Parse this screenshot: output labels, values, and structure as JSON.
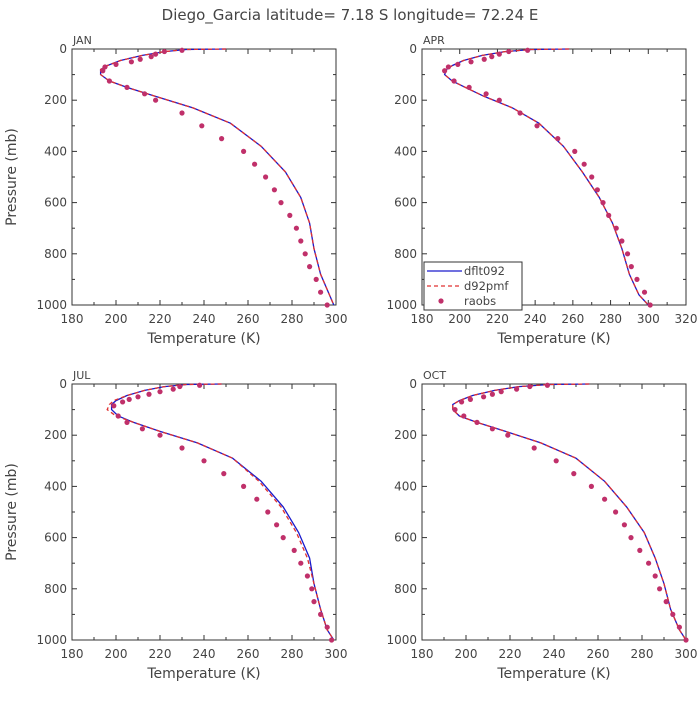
{
  "title": "Diego_Garcia  latitude= 7.18 S longitude= 72.24 E",
  "legend": {
    "items": [
      {
        "label": "dflt092",
        "color": "#1a1acc",
        "style": "solid"
      },
      {
        "label": "d92pmf",
        "color": "#e03030",
        "style": "dashed"
      },
      {
        "label": "raobs",
        "color": "#c0306a",
        "style": "marker"
      }
    ]
  },
  "chart_data": [
    {
      "type": "line",
      "panel_label": "JAN",
      "xlabel": "Temperature (K)",
      "ylabel": "Pressure (mb)",
      "xlim": [
        180,
        300
      ],
      "ylim": [
        1000,
        0
      ],
      "xticks": [
        180,
        200,
        220,
        240,
        260,
        280,
        300
      ],
      "yticks": [
        0,
        200,
        400,
        600,
        800,
        1000
      ],
      "series": [
        {
          "name": "dflt092",
          "x": [
            250,
            232,
            222,
            212,
            202,
            196,
            193,
            193,
            197,
            205,
            218,
            235,
            252,
            266,
            277,
            284,
            288,
            290,
            293,
            297,
            299
          ],
          "y": [
            0,
            2,
            10,
            25,
            45,
            65,
            80,
            100,
            125,
            150,
            185,
            230,
            290,
            380,
            480,
            580,
            680,
            780,
            880,
            960,
            1000
          ]
        },
        {
          "name": "d92pmf",
          "x": [
            250,
            232,
            222,
            212,
            202,
            196,
            193,
            193,
            197,
            205,
            218,
            235,
            252,
            266,
            277,
            284,
            288,
            290,
            293,
            297,
            299
          ],
          "y": [
            0,
            2,
            10,
            25,
            45,
            65,
            80,
            100,
            125,
            150,
            185,
            230,
            290,
            380,
            480,
            580,
            680,
            780,
            880,
            960,
            1000
          ]
        },
        {
          "name": "raobs",
          "x": [
            230,
            222,
            218,
            216,
            211,
            207,
            200,
            195,
            194,
            197,
            205,
            213,
            218,
            230,
            239,
            248,
            258,
            263,
            268,
            272,
            275,
            279,
            282,
            284,
            286,
            288,
            291,
            293,
            296
          ],
          "y": [
            5,
            10,
            20,
            30,
            40,
            50,
            60,
            70,
            85,
            125,
            150,
            175,
            200,
            250,
            300,
            350,
            400,
            450,
            500,
            550,
            600,
            650,
            700,
            750,
            800,
            850,
            900,
            950,
            1000
          ]
        }
      ]
    },
    {
      "type": "line",
      "panel_label": "APR",
      "xlabel": "Temperature (K)",
      "ylabel": "",
      "xlim": [
        180,
        320
      ],
      "ylim": [
        1000,
        0
      ],
      "xticks": [
        180,
        200,
        220,
        240,
        260,
        280,
        300,
        320
      ],
      "yticks": [
        0,
        200,
        400,
        600,
        800,
        1000
      ],
      "series": [
        {
          "name": "dflt092",
          "x": [
            258,
            238,
            224,
            212,
            202,
            196,
            193,
            192,
            196,
            203,
            213,
            228,
            242,
            255,
            265,
            274,
            281,
            286,
            290,
            295,
            300
          ],
          "y": [
            0,
            2,
            10,
            25,
            45,
            65,
            80,
            100,
            125,
            150,
            185,
            230,
            290,
            380,
            480,
            580,
            680,
            780,
            880,
            960,
            1000
          ]
        },
        {
          "name": "d92pmf",
          "x": [
            258,
            238,
            224,
            212,
            202,
            196,
            193,
            192,
            196,
            203,
            213,
            228,
            242,
            255,
            265,
            274,
            281,
            286,
            290,
            295,
            300
          ],
          "y": [
            0,
            2,
            10,
            25,
            45,
            65,
            80,
            100,
            125,
            150,
            185,
            230,
            290,
            380,
            480,
            580,
            680,
            780,
            880,
            960,
            1000
          ]
        },
        {
          "name": "raobs",
          "x": [
            236,
            226,
            221,
            217,
            213,
            206,
            199,
            194,
            192,
            197,
            205,
            214,
            221,
            232,
            241,
            252,
            261,
            266,
            270,
            273,
            276,
            279,
            283,
            286,
            289,
            291,
            294,
            298,
            301
          ],
          "y": [
            5,
            10,
            20,
            30,
            40,
            50,
            60,
            70,
            85,
            125,
            150,
            175,
            200,
            250,
            300,
            350,
            400,
            450,
            500,
            550,
            600,
            650,
            700,
            750,
            800,
            850,
            900,
            950,
            1000
          ]
        }
      ]
    },
    {
      "type": "line",
      "panel_label": "JUL",
      "xlabel": "Temperature (K)",
      "ylabel": "Pressure (mb)",
      "xlim": [
        180,
        300
      ],
      "ylim": [
        1000,
        0
      ],
      "xticks": [
        180,
        200,
        220,
        240,
        260,
        280,
        300
      ],
      "yticks": [
        0,
        200,
        400,
        600,
        800,
        1000
      ],
      "series": [
        {
          "name": "dflt092",
          "x": [
            248,
            232,
            222,
            213,
            205,
            200,
            198,
            198,
            201,
            208,
            220,
            237,
            253,
            266,
            276,
            283,
            288,
            290,
            293,
            296,
            299
          ],
          "y": [
            0,
            2,
            10,
            25,
            45,
            65,
            80,
            100,
            125,
            150,
            185,
            230,
            290,
            380,
            480,
            580,
            680,
            780,
            880,
            960,
            1000
          ]
        },
        {
          "name": "d92pmf",
          "x": [
            248,
            232,
            222,
            213,
            205,
            199,
            197,
            196,
            200,
            208,
            220,
            237,
            253,
            265,
            275,
            282,
            287,
            290,
            293,
            296,
            299
          ],
          "y": [
            0,
            2,
            10,
            25,
            45,
            65,
            80,
            100,
            125,
            150,
            185,
            230,
            290,
            380,
            480,
            580,
            680,
            780,
            880,
            960,
            1000
          ]
        },
        {
          "name": "raobs",
          "x": [
            238,
            229,
            226,
            220,
            215,
            210,
            206,
            203,
            199,
            201,
            205,
            212,
            220,
            230,
            240,
            249,
            258,
            264,
            269,
            273,
            276,
            281,
            284,
            287,
            289,
            290,
            293,
            296,
            298
          ],
          "y": [
            5,
            10,
            20,
            30,
            40,
            50,
            60,
            70,
            85,
            125,
            150,
            175,
            200,
            250,
            300,
            350,
            400,
            450,
            500,
            550,
            600,
            650,
            700,
            750,
            800,
            850,
            900,
            950,
            1000
          ]
        }
      ]
    },
    {
      "type": "line",
      "panel_label": "OCT",
      "xlabel": "Temperature (K)",
      "ylabel": "",
      "xlim": [
        180,
        300
      ],
      "ylim": [
        1000,
        0
      ],
      "xticks": [
        180,
        200,
        220,
        240,
        260,
        280,
        300
      ],
      "yticks": [
        0,
        200,
        400,
        600,
        800,
        1000
      ],
      "series": [
        {
          "name": "dflt092",
          "x": [
            256,
            238,
            224,
            213,
            203,
            197,
            194,
            194,
            197,
            205,
            218,
            234,
            250,
            263,
            273,
            281,
            286,
            290,
            293,
            297,
            300
          ],
          "y": [
            0,
            2,
            10,
            25,
            45,
            65,
            80,
            100,
            125,
            150,
            185,
            230,
            290,
            380,
            480,
            580,
            680,
            780,
            880,
            960,
            1000
          ]
        },
        {
          "name": "d92pmf",
          "x": [
            256,
            238,
            224,
            213,
            203,
            197,
            194,
            194,
            197,
            205,
            218,
            234,
            250,
            263,
            273,
            281,
            286,
            290,
            293,
            297,
            300
          ],
          "y": [
            0,
            2,
            10,
            25,
            45,
            65,
            80,
            100,
            125,
            150,
            185,
            230,
            290,
            380,
            480,
            580,
            680,
            780,
            880,
            960,
            1000
          ]
        },
        {
          "name": "raobs",
          "x": [
            237,
            229,
            223,
            216,
            212,
            208,
            202,
            198,
            195,
            199,
            205,
            212,
            219,
            231,
            241,
            249,
            257,
            263,
            268,
            272,
            275,
            279,
            283,
            286,
            288,
            291,
            294,
            297,
            300
          ],
          "y": [
            5,
            10,
            20,
            30,
            40,
            50,
            60,
            70,
            100,
            125,
            150,
            175,
            200,
            250,
            300,
            350,
            400,
            450,
            500,
            550,
            600,
            650,
            700,
            750,
            800,
            850,
            900,
            950,
            1000
          ]
        }
      ]
    }
  ]
}
